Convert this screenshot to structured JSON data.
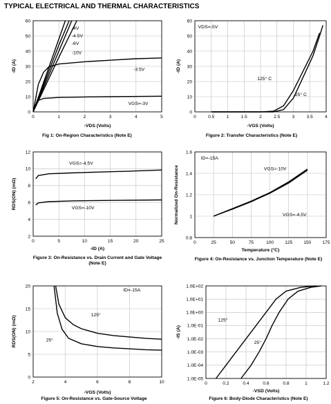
{
  "page": {
    "title": "TYPICAL ELECTRICAL AND THERMAL CHARACTERISTICS"
  },
  "chart_data": [
    {
      "id": "fig1",
      "type": "line",
      "caption": "Fig 1: On-Region Characteristics (Note E)",
      "xlabel": "-VDS (Volts)",
      "ylabel": "-ID (A)",
      "xlim": [
        0,
        5
      ],
      "ylim": [
        0,
        60
      ],
      "xticks": [
        0,
        1,
        2,
        3,
        4,
        5
      ],
      "yticks": [
        0,
        10,
        20,
        30,
        40,
        50,
        60
      ],
      "grid": true,
      "series": [
        {
          "name": "-4V",
          "points": [
            [
              0,
              0
            ],
            [
              0.5,
              20
            ],
            [
              1.0,
              40
            ],
            [
              1.5,
              60
            ]
          ]
        },
        {
          "name": "-4.5V",
          "points": [
            [
              0,
              0
            ],
            [
              0.5,
              18
            ],
            [
              1.0,
              36
            ],
            [
              1.7,
              60
            ]
          ]
        },
        {
          "name": "-6V",
          "points": [
            [
              0,
              0
            ],
            [
              0.5,
              22
            ],
            [
              1.0,
              44
            ],
            [
              1.4,
              60
            ]
          ]
        },
        {
          "name": "-10V",
          "points": [
            [
              0,
              0
            ],
            [
              0.5,
              24
            ],
            [
              1.0,
              48
            ],
            [
              1.25,
              60
            ]
          ]
        },
        {
          "name": "-3.5V",
          "points": [
            [
              0,
              0
            ],
            [
              0.2,
              18
            ],
            [
              0.4,
              26
            ],
            [
              0.6,
              29.5
            ],
            [
              1.0,
              31.5
            ],
            [
              2,
              33
            ],
            [
              3,
              34
            ],
            [
              4,
              35
            ],
            [
              5,
              35.5
            ]
          ]
        },
        {
          "name": "VGS=-3V",
          "points": [
            [
              0,
              0
            ],
            [
              0.1,
              5
            ],
            [
              0.2,
              7.5
            ],
            [
              0.4,
              8.8
            ],
            [
              1,
              9.5
            ],
            [
              2,
              9.8
            ],
            [
              3,
              10
            ],
            [
              5,
              10.3
            ]
          ]
        }
      ],
      "labels": [
        {
          "text": "-4V",
          "x": 1.5,
          "y": 54
        },
        {
          "text": "-4.5V",
          "x": 1.5,
          "y": 49
        },
        {
          "text": "-6V",
          "x": 1.5,
          "y": 44
        },
        {
          "text": "-10V",
          "x": 1.5,
          "y": 38
        },
        {
          "text": "-3.5V",
          "x": 3.9,
          "y": 27
        },
        {
          "text": "VGS=-3V",
          "x": 3.7,
          "y": 4.5
        }
      ]
    },
    {
      "id": "fig2",
      "type": "line",
      "caption": "Figure 2: Transfer Characteristics (Note E)",
      "xlabel": "-VGS (Volts)",
      "ylabel": "-ID (A)",
      "xlim": [
        0,
        4
      ],
      "ylim": [
        0,
        60
      ],
      "xticks": [
        0,
        0.5,
        1,
        1.5,
        2,
        2.5,
        3,
        3.5,
        4
      ],
      "yticks": [
        0,
        10,
        20,
        30,
        40,
        50,
        60
      ],
      "grid": true,
      "series": [
        {
          "name": "125° C",
          "points": [
            [
              0.5,
              0
            ],
            [
              2.0,
              0
            ],
            [
              2.4,
              0.5
            ],
            [
              2.7,
              4
            ],
            [
              3.0,
              14
            ],
            [
              3.3,
              27
            ],
            [
              3.6,
              40
            ],
            [
              3.8,
              52
            ]
          ]
        },
        {
          "name": "25° C",
          "points": [
            [
              0.5,
              0
            ],
            [
              2.4,
              0
            ],
            [
              2.7,
              1.5
            ],
            [
              3.0,
              9
            ],
            [
              3.3,
              23
            ],
            [
              3.6,
              37
            ],
            [
              3.8,
              50
            ],
            [
              3.9,
              57
            ]
          ]
        }
      ],
      "labels": [
        {
          "text": "VDS=-5V",
          "x": 0.1,
          "y": 55
        },
        {
          "text": "125° C",
          "x": 1.9,
          "y": 21
        },
        {
          "text": "25° C",
          "x": 3.05,
          "y": 10.5
        }
      ]
    },
    {
      "id": "fig3",
      "type": "line",
      "caption": "Figure 3: On-Resistance vs. Drain Current and Gate Voltage (Note E)",
      "xlabel": "-ID (A)",
      "ylabel": "RDS(ON) (mΩ)",
      "xlim": [
        0,
        25
      ],
      "ylim": [
        2,
        12
      ],
      "xticks": [
        0,
        5,
        10,
        15,
        20,
        25
      ],
      "yticks": [
        2,
        4,
        6,
        8,
        10,
        12
      ],
      "grid": true,
      "series": [
        {
          "name": "VGS=-4.5V",
          "points": [
            [
              0.5,
              8.8
            ],
            [
              1,
              9.2
            ],
            [
              3,
              9.4
            ],
            [
              7,
              9.5
            ],
            [
              12,
              9.6
            ],
            [
              18,
              9.7
            ],
            [
              25,
              9.85
            ]
          ]
        },
        {
          "name": "VGS=-10V",
          "points": [
            [
              0.5,
              5.7
            ],
            [
              1,
              5.95
            ],
            [
              3,
              6.1
            ],
            [
              8,
              6.2
            ],
            [
              15,
              6.25
            ],
            [
              25,
              6.3
            ]
          ]
        }
      ],
      "labels": [
        {
          "text": "VGS=-4.5V",
          "x": 7,
          "y": 10.5
        },
        {
          "text": "VGS=-10V",
          "x": 7.5,
          "y": 5.2
        }
      ]
    },
    {
      "id": "fig4",
      "type": "line",
      "caption": "Figure 4: On-Resistance vs. Junction Temperature (Note E)",
      "xlabel": "Temperature (°C)",
      "ylabel": "Normalized On-Resistance",
      "xlim": [
        0,
        175
      ],
      "ylim": [
        0.8,
        1.6
      ],
      "xticks": [
        0,
        25,
        50,
        75,
        100,
        125,
        150,
        175
      ],
      "yticks": [
        0.8,
        1,
        1.2,
        1.4,
        1.6
      ],
      "grid": true,
      "series": [
        {
          "name": "VGS=-10V",
          "points": [
            [
              25,
              1.0
            ],
            [
              50,
              1.07
            ],
            [
              75,
              1.14
            ],
            [
              100,
              1.22
            ],
            [
              125,
              1.32
            ],
            [
              150,
              1.44
            ]
          ]
        },
        {
          "name": "VGS=-4.5V",
          "points": [
            [
              25,
              1.0
            ],
            [
              50,
              1.065
            ],
            [
              75,
              1.135
            ],
            [
              100,
              1.215
            ],
            [
              125,
              1.31
            ],
            [
              150,
              1.43
            ]
          ]
        }
      ],
      "labels": [
        {
          "text": "ID=-15A",
          "x": 8,
          "y": 1.53
        },
        {
          "text": "VGS=-10V",
          "x": 92,
          "y": 1.43
        },
        {
          "text": "VGS=-4.5V",
          "x": 117,
          "y": 1.0
        }
      ]
    },
    {
      "id": "fig5",
      "type": "line",
      "caption": "Figure 5: On-Resistance vs. Gate-Source Voltage",
      "xlabel": "-VGS (Volts)",
      "ylabel": "RDS(ON) (mΩ)",
      "xlim": [
        2,
        10
      ],
      "ylim": [
        0,
        20
      ],
      "xticks": [
        2,
        4,
        6,
        8,
        10
      ],
      "yticks": [
        0,
        5,
        10,
        15,
        20
      ],
      "grid": true,
      "series": [
        {
          "name": "125°",
          "points": [
            [
              3.4,
              20
            ],
            [
              3.6,
              16
            ],
            [
              4,
              13
            ],
            [
              4.5,
              11.5
            ],
            [
              5,
              10.6
            ],
            [
              6,
              9.6
            ],
            [
              7,
              9.1
            ],
            [
              8,
              8.8
            ],
            [
              9,
              8.5
            ],
            [
              10,
              8.3
            ]
          ]
        },
        {
          "name": "25°",
          "points": [
            [
              3.3,
              20
            ],
            [
              3.5,
              14
            ],
            [
              3.8,
              10.5
            ],
            [
              4.2,
              8.5
            ],
            [
              5,
              7.3
            ],
            [
              6,
              6.7
            ],
            [
              7,
              6.4
            ],
            [
              8,
              6.2
            ],
            [
              9,
              6.0
            ],
            [
              10,
              5.9
            ]
          ]
        }
      ],
      "labels": [
        {
          "text": "ID=-15A",
          "x": 7.6,
          "y": 18.8
        },
        {
          "text": "125°",
          "x": 5.6,
          "y": 13.3
        },
        {
          "text": "25°",
          "x": 2.8,
          "y": 7.8
        }
      ]
    },
    {
      "id": "fig6",
      "type": "line",
      "caption": "Figure 6: Body-Diode Characteristics (Note E)",
      "xlabel": "-VSD (Volts)",
      "ylabel": "-IS (A)",
      "xlim": [
        0,
        1.2
      ],
      "ylim": [
        1e-05,
        100
      ],
      "yscale": "log",
      "xticks": [
        0.0,
        0.2,
        0.4,
        0.6,
        0.8,
        1.0,
        1.2
      ],
      "yticks": [
        1e-05,
        0.0001,
        0.001,
        0.01,
        0.1,
        1,
        10,
        100
      ],
      "ytick_labels": [
        "1.0E-05",
        "1.0E-04",
        "1.0E-03",
        "1.0E-02",
        "1.0E-01",
        "1.0E+00",
        "1.0E+01",
        "1.0E+02"
      ],
      "grid": true,
      "series": [
        {
          "name": "125°",
          "points": [
            [
              0.1,
              1e-05
            ],
            [
              0.2,
              0.0001
            ],
            [
              0.3,
              0.001
            ],
            [
              0.4,
              0.01
            ],
            [
              0.5,
              0.1
            ],
            [
              0.6,
              1
            ],
            [
              0.7,
              10
            ],
            [
              0.8,
              40
            ],
            [
              0.95,
              80
            ],
            [
              1.1,
              100
            ]
          ]
        },
        {
          "name": "25°",
          "points": [
            [
              0.35,
              1e-05
            ],
            [
              0.45,
              0.0001
            ],
            [
              0.53,
              0.001
            ],
            [
              0.6,
              0.01
            ],
            [
              0.66,
              0.1
            ],
            [
              0.73,
              1
            ],
            [
              0.82,
              10
            ],
            [
              0.92,
              40
            ],
            [
              1.05,
              80
            ],
            [
              1.15,
              100
            ]
          ]
        }
      ],
      "labels": [
        {
          "text": "125°",
          "x": 0.12,
          "y": 0.2
        },
        {
          "text": "25°",
          "x": 0.48,
          "y": 0.004
        }
      ]
    }
  ]
}
